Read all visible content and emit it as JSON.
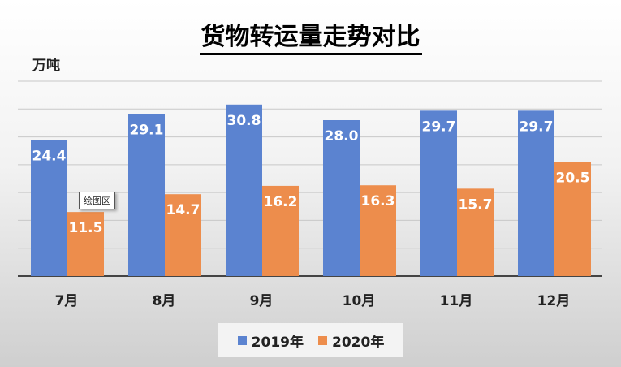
{
  "chart_data": {
    "type": "bar",
    "title": "货物转运量走势对比",
    "ylabel": "万吨",
    "xlabel": "",
    "categories": [
      "7月",
      "8月",
      "9月",
      "10月",
      "11月",
      "12月"
    ],
    "series": [
      {
        "name": "2019年",
        "values": [
          24.4,
          29.1,
          30.8,
          28.0,
          29.7,
          29.7
        ],
        "color": "#5b83d0"
      },
      {
        "name": "2020年",
        "values": [
          11.5,
          14.7,
          16.2,
          16.3,
          15.7,
          20.5
        ],
        "color": "#ed8d4c"
      }
    ],
    "ylim": [
      0,
      35
    ],
    "grid": true,
    "legend": "bottom",
    "data_labels": true
  },
  "tooltip_text": "绘图区"
}
